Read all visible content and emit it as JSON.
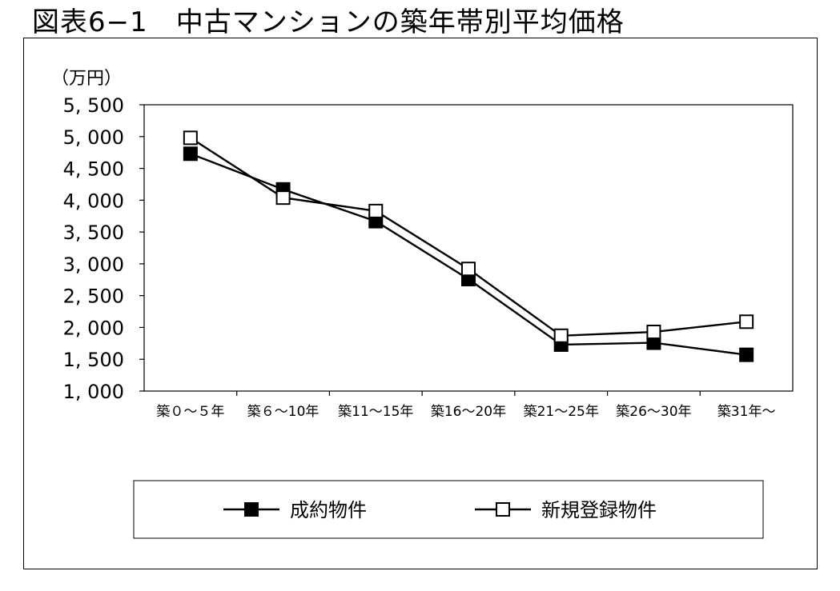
{
  "title": "図表6−1　中古マンションの築年帯別平均価格",
  "chart_data": {
    "type": "line",
    "title": "図表6−1　中古マンションの築年帯別平均価格",
    "ylabel": "（万円）",
    "xlabel": "",
    "ylim": [
      1000,
      5500
    ],
    "y_ticks": [
      1000,
      1500,
      2000,
      2500,
      3000,
      3500,
      4000,
      4500,
      5000,
      5500
    ],
    "y_tick_labels": [
      "1, 000",
      "1, 500",
      "2, 000",
      "2, 500",
      "3, 000",
      "3, 500",
      "4, 000",
      "4, 500",
      "5, 000",
      "5, 500"
    ],
    "categories": [
      "築０～５年",
      "築６～10年",
      "築11～15年",
      "築16～20年",
      "築21～25年",
      "築26～30年",
      "築31年～"
    ],
    "grid": false,
    "legend_position": "bottom",
    "series": [
      {
        "name": "成約物件",
        "marker": "filled-square",
        "color": "#000000",
        "values": [
          4730,
          4170,
          3670,
          2760,
          1730,
          1760,
          1570
        ]
      },
      {
        "name": "新規登録物件",
        "marker": "open-square",
        "color": "#000000",
        "values": [
          4980,
          4040,
          3830,
          2920,
          1870,
          1930,
          2090
        ]
      }
    ]
  }
}
